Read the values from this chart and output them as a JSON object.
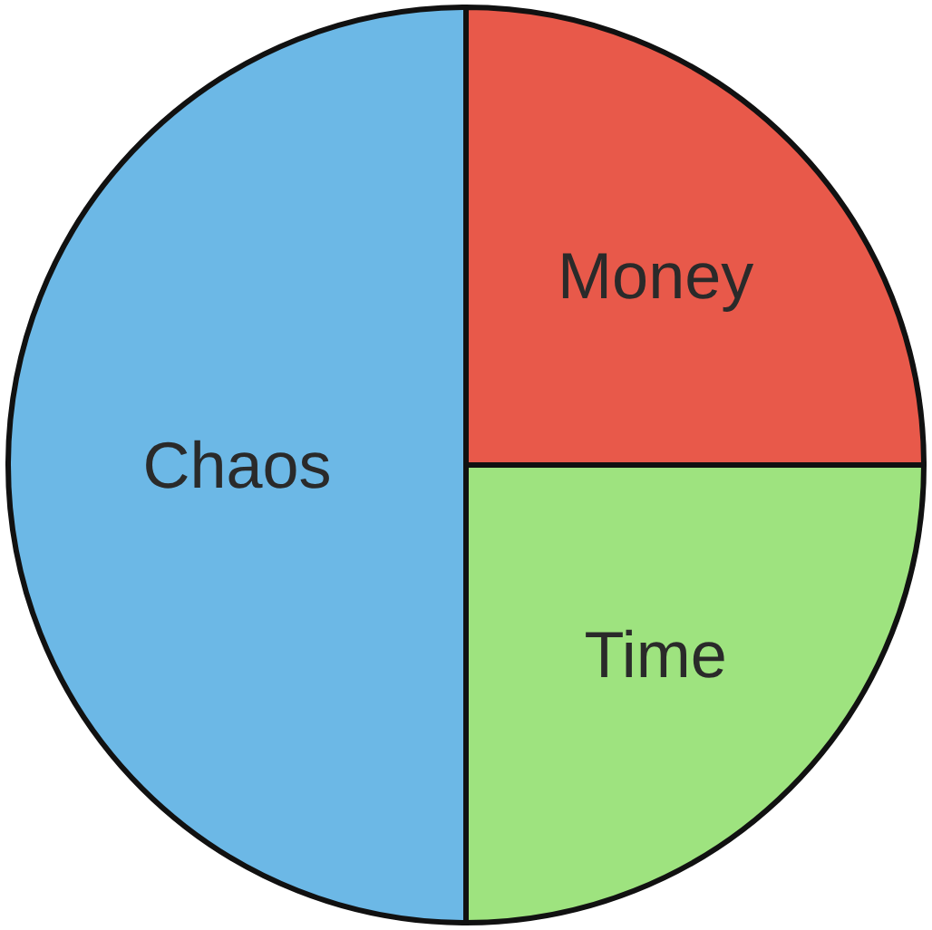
{
  "chart_data": {
    "type": "pie",
    "categories": [
      "Money",
      "Time",
      "Chaos"
    ],
    "values": [
      25,
      25,
      50
    ],
    "colors": [
      "#e8594a",
      "#9ee37f",
      "#6cb8e6"
    ],
    "legend": false
  }
}
